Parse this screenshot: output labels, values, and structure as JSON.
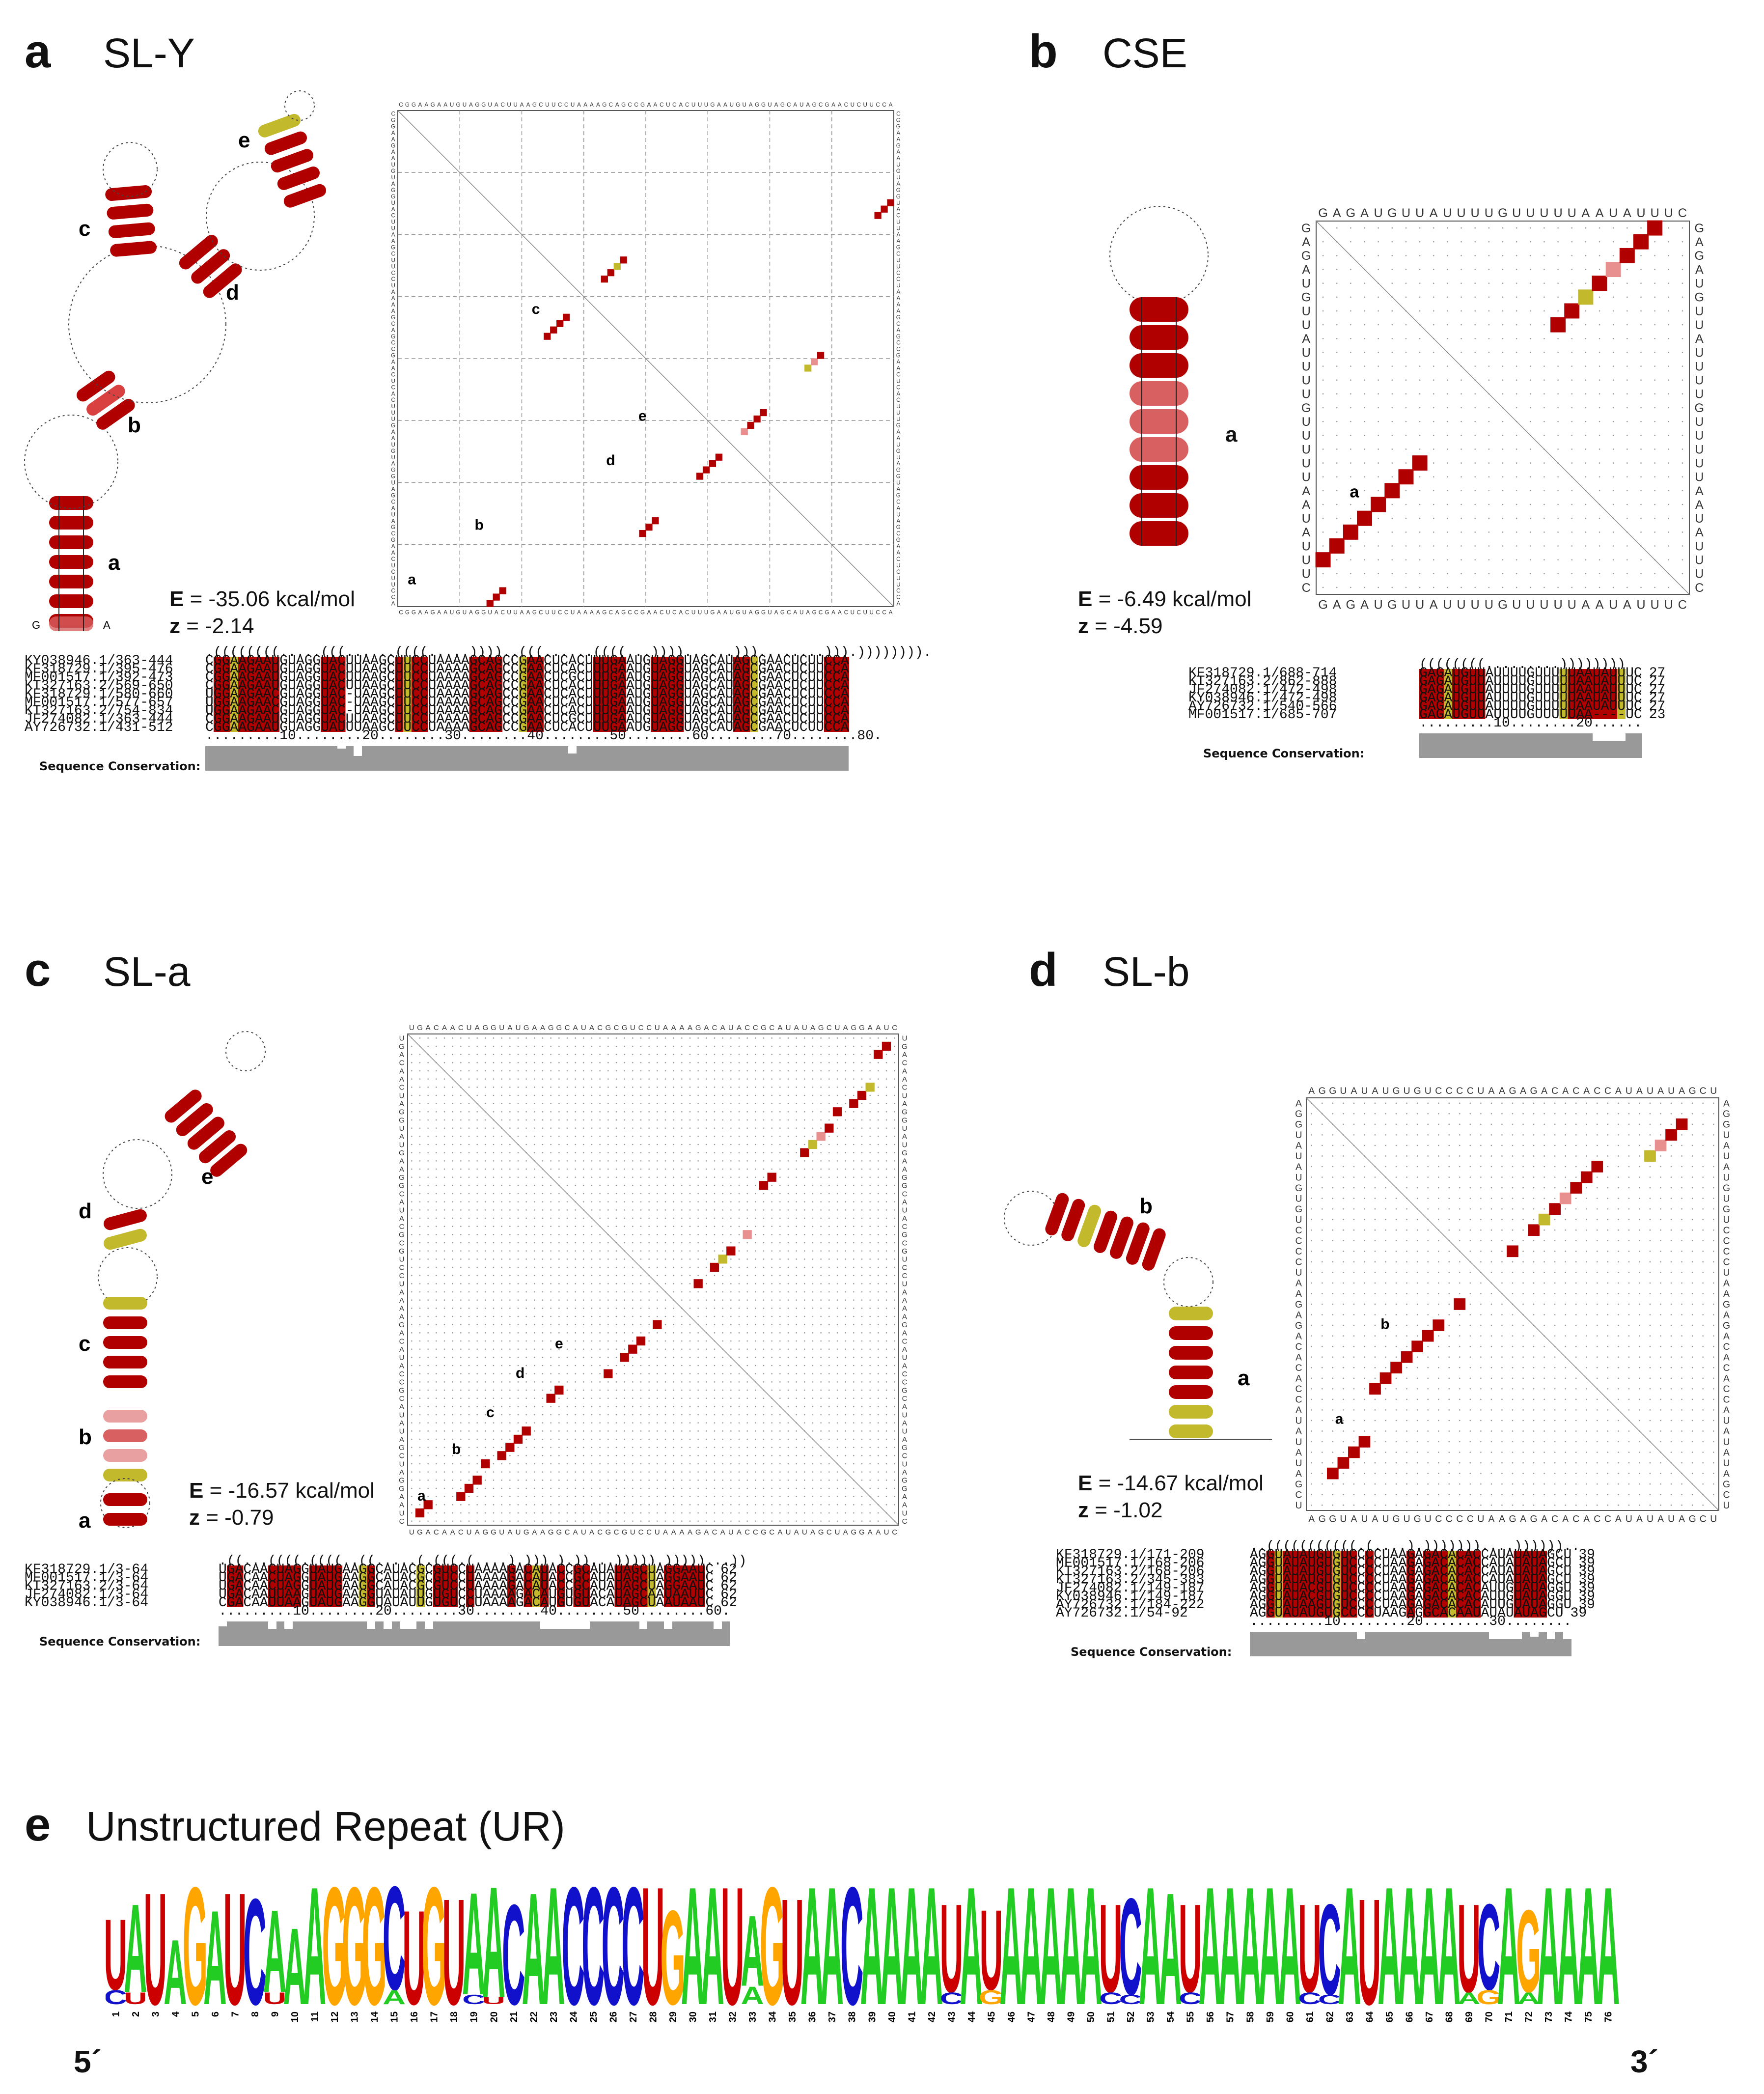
{
  "panels": {
    "a": {
      "label": "a",
      "title": "SL-Y",
      "energy_label": "E",
      "energy_value": " = -35.06  kcal/mol",
      "z_label": "z",
      "z_value": " = -2.14",
      "helix_labels": [
        "a",
        "b",
        "c",
        "d",
        "e"
      ],
      "matrix_seq": "CGGAAGAAUGUAGGUACUUAAGCUUCCUAAAAGCAGCCGAACUCACUUUGAAUGUAGGUAGCAUAGCGAACUCUUCCA",
      "structure": ".((((((((.....(((......((((.....))))..(((......((((...))))......)))........))).)))))))).",
      "alignment": [
        {
          "name": "KY038946.1/363-444",
          "seq": "CGGAAGAAUGUAGGUACUUAAGCUUCCUAAAAGCAGCCGAACUCACUUUGAAUGUAGGUAGCAUAGCGAACUCUUCCA"
        },
        {
          "name": "KF318729.1/395-476",
          "seq": "CGGAAGAAUGUAGGUACUUAAGCUUCCUAAAAGCAGCCGAACUCACUUUGAAUGUAGGUAGCAUAGCGAACUCUUCCA"
        },
        {
          "name": "MF001517.1/392-473",
          "seq": "CGGAAGAAUGUAGGUACUUAAGCUUCCUAAAAGCAGCCGAACUCGCUUUGAAUGUAGGUAGCAUAGCGAACUCUUCCA"
        },
        {
          "name": "KT327163.2/569-650",
          "seq": "CGGAAGAAUGUAGGUACUUAAGCUUCCUAAAAGCAGCCGAACUCACUUUGAAUGUAGGUAGCAUAGCGAACUCUUCCA"
        },
        {
          "name": "KF318729.1/580-660",
          "seq": "UGGAAGAACGUAGGUAC-UAAGCUUCCUAAAAGCAGCCGAACUCACUUUGAAUGUAGGUAGCAUAGCGAACUCUUCCA"
        },
        {
          "name": "MF001517.1/577-657",
          "seq": "UGGAAGAACGUAGGUAC-UAAGCUUCCUAAAAGCAGCCGAACUCACUUUGAAUGUAGGUAGCAUAGCGAACUCUUCCA"
        },
        {
          "name": "KT327163.2/754-834",
          "seq": "UGGAAGAACGUAGGUAC-UAAGCUUCCUAAAAGCAGCCGAACUCACUUUGAAUGUAGGUAGCAUAGCGAACUCUUCCA"
        },
        {
          "name": "JF274082.1/363-444",
          "seq": "CGGAAGAAUGUAGGUACUUAAGCUUCCUAAAAGCAGCCGAACUCGCUUUGAAUGUAGGUAGCAUAGCGAACUCUUCCA"
        },
        {
          "name": "AY726732.1/431-512",
          "seq": "CGGAAGAAUGUAGGUAUUUAAGCUUCCUAAAAGCAGCCGAACUCACUUUGAAUGUAGGUAGCAUAGCGAACUCUUCCA"
        }
      ],
      "ruler": ".........10........20........30........40........50........60........70........80.",
      "conservation_label": "Sequence Conservation:",
      "conservation": [
        1,
        1,
        1,
        1,
        1,
        1,
        1,
        1,
        1,
        1,
        1,
        1,
        1,
        1,
        1,
        1,
        0.9,
        1,
        0.6,
        1,
        1,
        1,
        1,
        1,
        1,
        1,
        1,
        1,
        1,
        1,
        1,
        1,
        1,
        1,
        1,
        1,
        1,
        1,
        1,
        1,
        1,
        1,
        1,
        1,
        0.7,
        1,
        1,
        1,
        1,
        1,
        1,
        1,
        1,
        1,
        1,
        1,
        1,
        1,
        1,
        1,
        1,
        1,
        1,
        1,
        1,
        1,
        1,
        1,
        1,
        1,
        1,
        1,
        1,
        1,
        1,
        1,
        1,
        1
      ]
    },
    "b": {
      "label": "b",
      "title": "CSE",
      "energy_label": "E",
      "energy_value": " = -6.49  kcal/mol",
      "z_label": "z",
      "z_value": " = -4.59",
      "helix_labels": [
        "a"
      ],
      "matrix_seq": "GAGAUGUUAUUUUGUUUUUAAUAUUUC",
      "structure": "((((((((.........))))))))",
      "alignment": [
        {
          "name": "KF318729.1/688-714",
          "seq": "GAGAUGUUAUUUUGUUUUUAAUAUUUC",
          "len": "27"
        },
        {
          "name": "KT327163.2/862-888",
          "seq": "GAGAUGUUAUUUUGUUUUUAAUAUUUC",
          "len": "27"
        },
        {
          "name": "JF274082.1/472-498",
          "seq": "GAGAUGUUAUUUUGUUUUUAAUAUUUC",
          "len": "27"
        },
        {
          "name": "KY038946.1/472-498",
          "seq": "GAGAUGUUAUUUUGUUUUUAAUAUUUC",
          "len": "27"
        },
        {
          "name": "AY726732.1/540-566",
          "seq": "GAGAUGUUAUUUUGUUUUUAAUAUUUC",
          "len": "27"
        },
        {
          "name": "MF001517.1/685-707",
          "seq": "GAGAUGUUAUUUUGUUUUUAA----UC",
          "len": "23"
        }
      ],
      "ruler": ".........10........20......",
      "conservation_label": "Sequence Conservation:",
      "conservation": [
        1,
        1,
        1,
        1,
        1,
        1,
        1,
        1,
        1,
        1,
        1,
        1,
        1,
        1,
        1,
        1,
        1,
        1,
        1,
        1,
        1,
        0.7,
        0.7,
        0.7,
        0.7,
        1,
        1
      ]
    },
    "c": {
      "label": "c",
      "title": "SL-a",
      "energy_label": "E",
      "energy_value": " = -16.57  kcal/mol",
      "z_label": "z",
      "z_value": " = -0.79",
      "helix_labels": [
        "a",
        "b",
        "c",
        "d",
        "e"
      ],
      "matrix_seq": "UGACAACUAGGUAUGAAGGCAUACGCGUCCUAAAAGACAUACCGCAUAUAGCUAGGAAUC",
      "structure": ".((...((((.((((..((.....(.(((.(....).))).).))...))))).)))))...))",
      "alignment": [
        {
          "name": "KF318729.1/3-64",
          "seq": "UGACAACUAGGUAUGAAGGCAUACGCGUCCUAAAAGACAUACCGCAUAUAGCUAGGAAUC",
          "len": "62"
        },
        {
          "name": "MF001517.1/3-64",
          "seq": "UGACAACUAGGUAUGAAGGCAUACGCGUCCUAAAAGACAUACCGCAUAUAGCUAGGAAUC",
          "len": "62"
        },
        {
          "name": "KT327163.2/3-64",
          "seq": "UGACAACUAGGUAUGAAGGCAUACGCGUCCUAAAAGACAUACCGCAUAUAGCUAGGAAUC",
          "len": "62"
        },
        {
          "name": "JF274082.1/3-64",
          "seq": "UGACAAUUAAGUAUGAAGGUAUAUUGUGUCCUAAAAGACAUGUGUACAUAGCAAUAAUUC",
          "len": "62"
        },
        {
          "name": "KY038946.1/3-64",
          "seq": "CGACAAUUAAGUAUGAAGGUAUAUUGUGUCCUAAAAGACAUGUGUACAUAGCUAAUAAUC",
          "len": "62"
        }
      ],
      "ruler": ".........10........20........30........40........50........60.",
      "conservation_label": "Sequence Conservation:",
      "conservation": [
        0.8,
        1,
        1,
        1,
        1,
        1,
        0.7,
        1,
        0.7,
        1,
        1,
        1,
        1,
        1,
        1,
        1,
        1,
        1,
        0.7,
        1,
        0.7,
        1,
        0.7,
        0.7,
        1,
        0.7,
        1,
        1,
        1,
        1,
        1,
        1,
        1,
        1,
        1,
        1,
        1,
        1,
        1,
        0.7,
        0.7,
        0.7,
        0.7,
        0.7,
        0.7,
        1,
        1,
        1,
        1,
        1,
        1,
        0.7,
        1,
        1,
        0.7,
        1,
        1,
        1,
        1,
        1,
        0.7,
        1
      ]
    },
    "d": {
      "label": "d",
      "title": "SL-b",
      "energy_label": "E",
      "energy_value": " = -14.67  kcal/mol",
      "z_label": "z",
      "z_value": " = -1.02",
      "helix_labels": [
        "a",
        "b"
      ],
      "matrix_seq": "AGGUAUAUGUGUCCCCUAAGAGACACACCAUAUAUAGCU",
      "structure": "..(((((((((((.(....).)))))))....))))))..",
      "alignment": [
        {
          "name": "KF318729.1/171-209",
          "seq": "AGGUAUAUGUGUCCCCUAAGAGACACACCAUAUAUAGCU",
          "len": "39"
        },
        {
          "name": "MF001517.1/168-206",
          "seq": "AGGUAUAUGUGUCCCCUAAGAGACACACCAUAUAUAGCU",
          "len": "39"
        },
        {
          "name": "KT327163.2/168-206",
          "seq": "AGGUAUAUGUGUCCCCUAAGAGACACACCAUAUAUAGCU",
          "len": "39"
        },
        {
          "name": "KT327163.2/345-383",
          "seq": "AGGUAUAUGUGUCCCCUAAGAGACACACCAUAUAUAGCU",
          "len": "39"
        },
        {
          "name": "JF274082.1/149-187",
          "seq": "AGGUAUACGUGUCCCCUAAGAGACACACAUUGUAUAGGU",
          "len": "39"
        },
        {
          "name": "KY038946.1/149-187",
          "seq": "AGGUAUACGUGUCCCCUAAGAGACACACAUUGUAUAGGU",
          "len": "39"
        },
        {
          "name": "AY726732.1/184-222",
          "seq": "AGGUAUAAGUGUCCCCUAAGAGACACACAUUGUAUAGGU",
          "len": "39"
        },
        {
          "name": "AY726732.1/54-92",
          "seq": "AGGUAUAUGUGCCCCUAAGAGGCACAAUAUAUAUAGCU",
          "len": "39"
        }
      ],
      "ruler": ".........10........20........30........",
      "conservation_label": "Sequence Conservation:",
      "conservation": [
        1,
        1,
        1,
        1,
        1,
        1,
        1,
        1,
        1,
        1,
        1,
        1,
        1,
        0.7,
        1,
        1,
        1,
        1,
        1,
        1,
        1,
        1,
        1,
        1,
        1,
        1,
        1,
        1,
        1,
        0.7,
        0.7,
        0.7,
        0.7,
        1,
        0.8,
        1,
        0.7,
        1,
        0.7
      ]
    },
    "e": {
      "label": "e",
      "title": "Unstructured Repeat (UR)",
      "five_prime": "5´",
      "three_prime": "3´",
      "logo": [
        "U",
        "A",
        "U",
        "A",
        "G",
        "A",
        "U",
        "C",
        "A",
        "A",
        "A",
        "G",
        "G",
        "G",
        "C",
        "U",
        "G",
        "U",
        "A",
        "A",
        "C",
        "A",
        "A",
        "C",
        "C",
        "C",
        "C",
        "U",
        "G",
        "A",
        "A",
        "U",
        "A",
        "G",
        "U",
        "A",
        "A",
        "C",
        "A",
        "A",
        "A",
        "A",
        "U",
        "A",
        "U",
        "A",
        "A",
        "A",
        "A",
        "A",
        "U",
        "C",
        "A",
        "A",
        "U",
        "A",
        "A",
        "A",
        "A",
        "A",
        "U",
        "C",
        "A",
        "U",
        "A",
        "A",
        "A",
        "A",
        "U",
        "C",
        "A",
        "G",
        "A",
        "A",
        "A",
        "A"
      ],
      "logo_heights": [
        0.72,
        0.85,
        0.95,
        0.55,
        1,
        0.8,
        0.95,
        0.9,
        0.8,
        0.65,
        1,
        1,
        1,
        1,
        1,
        0.8,
        1,
        0.9,
        0.95,
        1,
        0.85,
        0.95,
        1,
        1,
        1,
        1,
        1,
        1,
        0.8,
        1,
        1,
        1,
        0.75,
        1,
        0.9,
        1,
        1,
        1,
        1,
        1,
        1,
        1,
        0.85,
        1,
        0.8,
        1,
        1,
        1,
        1,
        1,
        0.85,
        0.9,
        1,
        0.95,
        0.85,
        1,
        1,
        1,
        1,
        1,
        0.85,
        0.85,
        1,
        0.9,
        1,
        1,
        1,
        1,
        0.85,
        0.85,
        1,
        0.8,
        1,
        1,
        1,
        1
      ],
      "logo_minor": [
        [
          "C",
          0.12
        ],
        [
          "U",
          0.1
        ],
        null,
        null,
        null,
        null,
        null,
        null,
        [
          "U",
          0.1
        ],
        null,
        null,
        null,
        null,
        null,
        [
          "A",
          0.12
        ],
        null,
        null,
        null,
        [
          "C",
          0.08
        ],
        [
          "U",
          0.06
        ],
        null,
        null,
        null,
        null,
        null,
        null,
        null,
        null,
        null,
        null,
        null,
        null,
        [
          "A",
          0.15
        ],
        null,
        null,
        null,
        null,
        null,
        null,
        null,
        null,
        null,
        [
          "C",
          0.1
        ],
        null,
        [
          "G",
          0.12
        ],
        null,
        null,
        null,
        null,
        null,
        [
          "C",
          0.1
        ],
        [
          "C",
          0.08
        ],
        null,
        null,
        [
          "C",
          0.1
        ],
        null,
        null,
        null,
        null,
        null,
        [
          "C",
          0.1
        ],
        [
          "C",
          0.08
        ],
        null,
        null,
        null,
        null,
        null,
        null,
        [
          "A",
          0.1
        ],
        [
          "G",
          0.12
        ],
        null,
        [
          "A",
          0.1
        ],
        null,
        null,
        null,
        null
      ]
    }
  },
  "colors": {
    "dark_red": "#b00000",
    "mid_red": "#d94040",
    "light_red": "#e89090",
    "olive": "#c2ba2c",
    "yellow_light": "#f0e68c",
    "logo_A": "#22cc22",
    "logo_C": "#1111cc",
    "logo_G": "#ffa500",
    "logo_U": "#cc0000"
  }
}
